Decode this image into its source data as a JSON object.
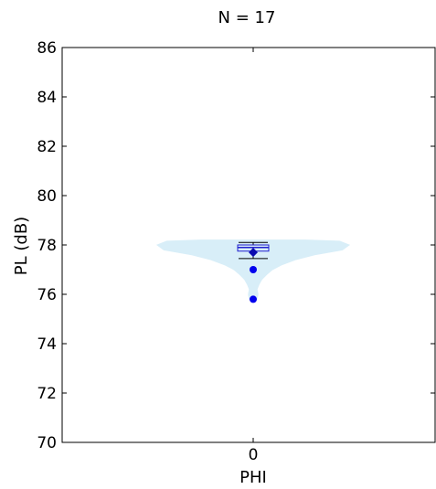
{
  "chart_data": {
    "type": "violin",
    "title": "N = 17",
    "xlabel": "PHI",
    "ylabel": "PL (dB)",
    "ylim": [
      70,
      86
    ],
    "yticks": [
      70,
      72,
      74,
      76,
      78,
      80,
      82,
      84,
      86
    ],
    "categories": [
      "0"
    ],
    "grid": false,
    "colors": {
      "violin_fill": "#d8eef8",
      "box_edge": "#1f1fcf",
      "box_fill": "#d8eef8",
      "median": "#1f1fcf",
      "mean_marker": "#0b0bb0",
      "outlier": "#0000ee",
      "whisker": "#000000"
    },
    "series": [
      {
        "category": "0",
        "n": 17,
        "density": [
          [
            75.8,
            0.04
          ],
          [
            76.0,
            0.05
          ],
          [
            76.2,
            0.04
          ],
          [
            76.4,
            0.06
          ],
          [
            76.6,
            0.09
          ],
          [
            76.8,
            0.14
          ],
          [
            77.0,
            0.2
          ],
          [
            77.2,
            0.3
          ],
          [
            77.4,
            0.44
          ],
          [
            77.6,
            0.64
          ],
          [
            77.8,
            0.93
          ],
          [
            78.0,
            1.0
          ],
          [
            78.15,
            0.9
          ],
          [
            78.2,
            0.55
          ]
        ],
        "box": {
          "q1": 77.75,
          "median": 77.9,
          "q3": 78.0,
          "whisker_low": 77.45,
          "whisker_high": 78.1,
          "mean": 77.7
        },
        "outliers": [
          77.0,
          75.8
        ]
      }
    ]
  }
}
